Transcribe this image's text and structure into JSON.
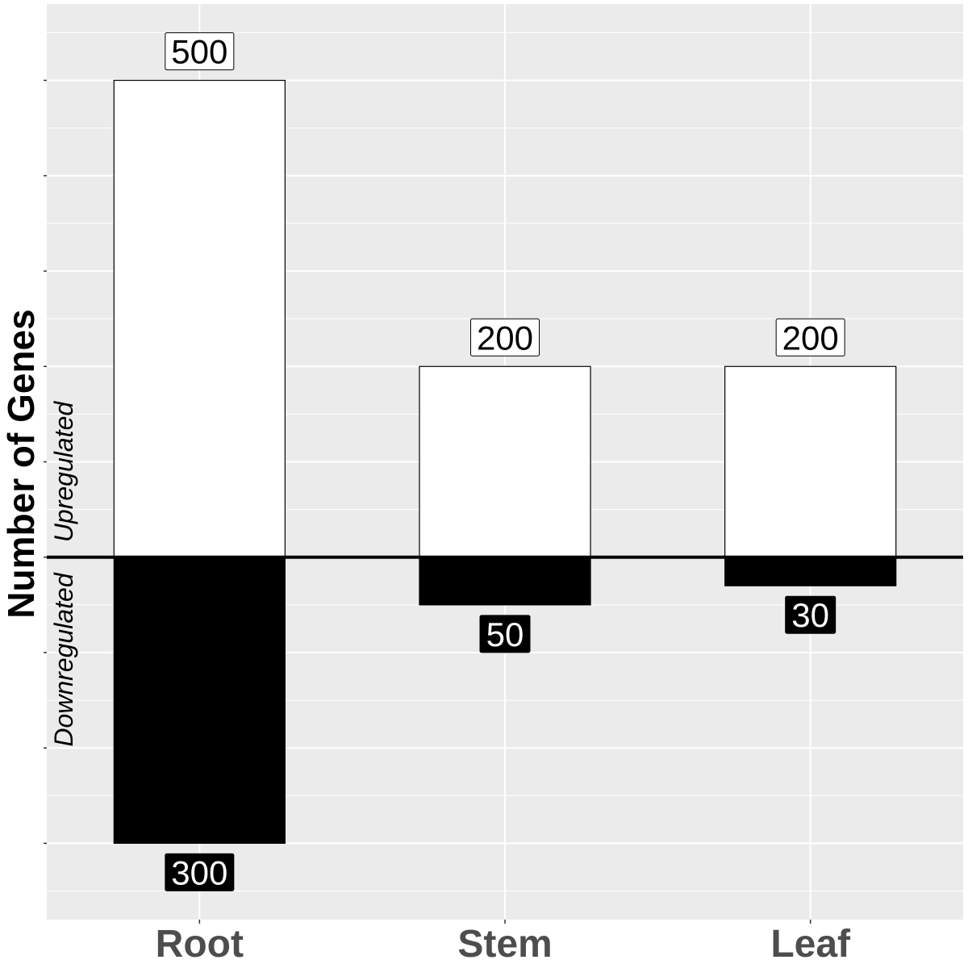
{
  "chart_data": {
    "type": "bar",
    "categories": [
      "Root",
      "Stem",
      "Leaf"
    ],
    "series": [
      {
        "values": [
          500,
          200,
          200
        ],
        "color": "#ffffff"
      },
      {
        "values": [
          -300,
          -50,
          -30
        ],
        "color": "#000000"
      }
    ],
    "ylabel": "Number of Genes",
    "ylabel_up": "Upregulated",
    "ylabel_down": "Downregulated",
    "ylim": [
      -380,
      580
    ],
    "grid": true,
    "panel_background": "#ebebeb",
    "zero_line_color": "#000000"
  }
}
